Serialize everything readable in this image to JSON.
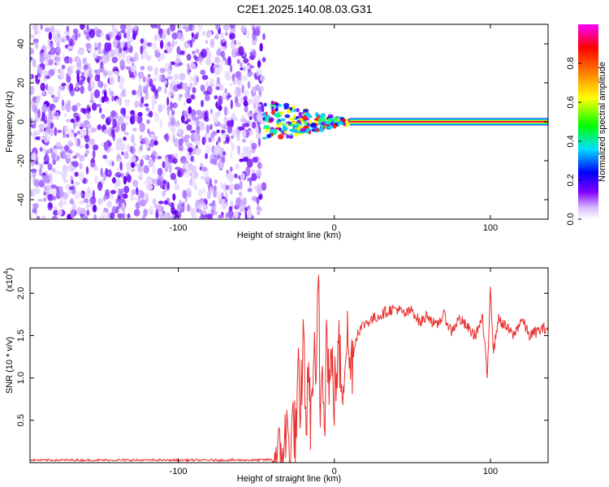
{
  "title": "C2E1.2025.140.08.03.G31",
  "chart_data": [
    {
      "type": "heatmap",
      "xlabel": "Height of straight line (km)",
      "ylabel": "Frequency (Hz)",
      "xlim": [
        -195,
        137
      ],
      "ylim": [
        -50,
        50
      ],
      "xticks": [
        -100,
        0,
        100
      ],
      "yticks": [
        -40,
        -20,
        0,
        20,
        40
      ],
      "noise_region_x": [
        -195,
        -45
      ],
      "transition_region_x": [
        -45,
        10
      ],
      "line_region_x": [
        10,
        137
      ],
      "line_frequency": 0,
      "colorbar": {
        "label": "Normalized spectral amplitude",
        "range": [
          0,
          1
        ],
        "ticks": [
          0.0,
          0.2,
          0.4,
          0.6,
          0.8
        ],
        "colors": [
          "#ffffff",
          "#d8b8ff",
          "#8000ff",
          "#0000ff",
          "#00e0ff",
          "#00ff00",
          "#ffff00",
          "#ff8000",
          "#ff0000",
          "#ff00ff"
        ]
      }
    },
    {
      "type": "line",
      "xlabel": "Height of straight line (km)",
      "ylabel": "SNR (10 * v/v)",
      "scale_note": "(x10",
      "scale_exp": "4",
      "xlim": [
        -195,
        137
      ],
      "ylim": [
        0,
        2.3
      ],
      "xticks": [
        -100,
        0,
        100
      ],
      "yticks": [
        0.5,
        1.0,
        1.5,
        2.0
      ],
      "ytick_labels": [
        "0.5",
        "1.0",
        "1.5",
        "2.0"
      ],
      "color": "#e8302e",
      "series": [
        {
          "x": [
            -195,
            -150,
            -100,
            -50,
            -35,
            -30,
            -28,
            -26,
            -25,
            -23,
            -22,
            -20,
            -18,
            -16,
            -15,
            -13,
            -12,
            -10,
            -9,
            -8,
            -6,
            -5,
            -3,
            -2,
            0,
            3,
            5,
            8,
            10,
            15,
            20,
            25,
            30,
            35,
            40,
            45,
            50,
            55,
            60,
            65,
            70,
            75,
            80,
            85,
            90,
            95,
            98,
            100,
            102,
            105,
            110,
            115,
            120,
            125,
            130,
            137
          ],
          "y": [
            0.03,
            0.03,
            0.03,
            0.03,
            0.04,
            0.35,
            0.1,
            0.6,
            0.2,
            1.0,
            0.3,
            1.55,
            0.5,
            1.05,
            0.35,
            1.45,
            0.6,
            2.25,
            0.4,
            1.3,
            0.7,
            1.6,
            0.9,
            1.2,
            0.8,
            1.3,
            0.9,
            1.55,
            1.1,
            1.55,
            1.65,
            1.7,
            1.75,
            1.8,
            1.82,
            1.75,
            1.8,
            1.65,
            1.75,
            1.6,
            1.75,
            1.55,
            1.7,
            1.6,
            1.5,
            1.7,
            1.0,
            2.1,
            1.3,
            1.7,
            1.6,
            1.5,
            1.7,
            1.5,
            1.55,
            1.6
          ]
        }
      ]
    }
  ]
}
